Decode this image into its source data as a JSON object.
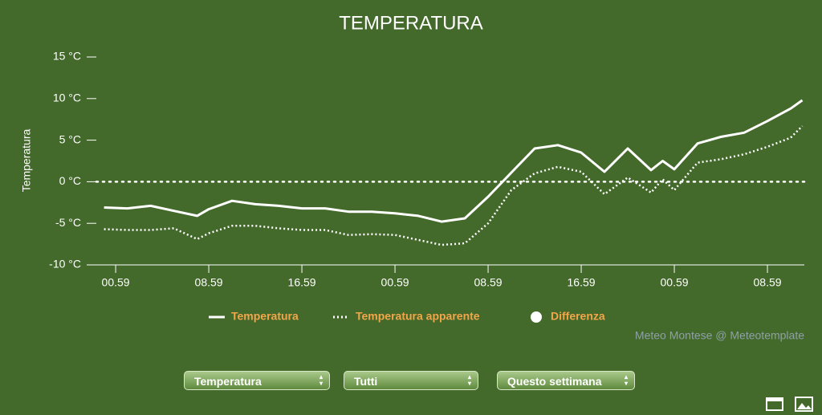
{
  "chart_data": {
    "type": "line",
    "title": "TEMPERATURA",
    "y_label": "Temperatura",
    "x": [
      -1,
      1,
      3,
      5,
      7,
      8,
      10,
      12,
      14,
      16,
      18,
      20,
      22,
      24,
      26,
      28,
      30,
      32,
      34,
      36,
      38,
      40,
      42,
      44,
      46,
      47,
      48,
      50,
      52,
      54,
      56,
      58,
      59
    ],
    "series": [
      {
        "name": "Temperatura",
        "color": "#ffffff",
        "style": "solid",
        "values": [
          -3.1,
          -3.2,
          -2.9,
          -3.5,
          -4.1,
          -3.3,
          -2.3,
          -2.7,
          -2.9,
          -3.2,
          -3.2,
          -3.6,
          -3.6,
          -3.8,
          -4.1,
          -4.8,
          -4.4,
          -1.8,
          1.1,
          4.0,
          4.4,
          3.5,
          1.2,
          4.0,
          1.4,
          2.5,
          1.5,
          4.6,
          5.4,
          5.9,
          7.3,
          8.8,
          9.8
        ]
      },
      {
        "name": "Temperatura apparente",
        "color": "#ffffff",
        "style": "dotted",
        "values": [
          -5.7,
          -5.8,
          -5.8,
          -5.6,
          -6.9,
          -6.2,
          -5.3,
          -5.3,
          -5.6,
          -5.8,
          -5.8,
          -6.4,
          -6.3,
          -6.4,
          -7.0,
          -7.6,
          -7.4,
          -5.0,
          -1.0,
          1.0,
          1.8,
          1.2,
          -1.5,
          0.5,
          -1.3,
          0.3,
          -1.0,
          2.3,
          2.7,
          3.3,
          4.2,
          5.3,
          6.7
        ]
      },
      {
        "name": "Differenza",
        "color": "#ffffff",
        "style": "marker",
        "values": [
          null,
          null,
          null,
          null,
          null,
          null,
          null,
          null,
          null,
          null,
          null,
          null,
          null,
          null,
          null,
          null,
          null,
          null,
          null,
          null,
          null,
          null,
          null,
          null,
          null,
          null,
          null,
          null,
          null,
          null,
          null,
          null,
          null
        ]
      }
    ],
    "xlim": [
      -1.66,
      59.17
    ],
    "xticks": [
      {
        "value": 0,
        "label": "00.59"
      },
      {
        "value": 8,
        "label": "08.59"
      },
      {
        "value": 16,
        "label": "16.59"
      },
      {
        "value": 24,
        "label": "00.59"
      },
      {
        "value": 32,
        "label": "08.59"
      },
      {
        "value": 40,
        "label": "16.59"
      },
      {
        "value": 48,
        "label": "00.59"
      },
      {
        "value": 56,
        "label": "08.59"
      }
    ],
    "ylim": [
      -10,
      15
    ],
    "yticks": [
      {
        "value": -10,
        "label": "-10 °C"
      },
      {
        "value": -5,
        "label": "-5 °C"
      },
      {
        "value": 0,
        "label": "0 °C"
      },
      {
        "value": 5,
        "label": "5 °C"
      },
      {
        "value": 10,
        "label": "10 °C"
      },
      {
        "value": 15,
        "label": "15 °C"
      }
    ],
    "zero_line": 0,
    "legend_color": "#f2a64a",
    "credits": "Meteo Montese @ Meteotemplate"
  },
  "controls": [
    "Temperatura",
    "Tutti",
    "Questo settimana"
  ]
}
